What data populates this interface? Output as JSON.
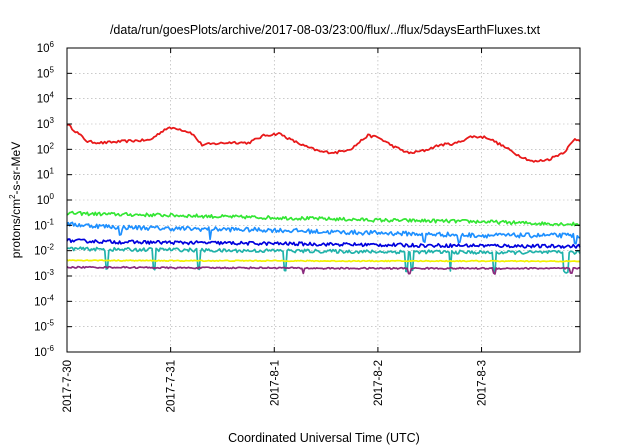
{
  "chart_data": {
    "type": "line",
    "title": "/data/run/goesPlots/archive/2017-08-03/23:00/flux/../flux/5daysEarthFluxes.txt",
    "xlabel": "Coordinated Universal Time (UTC)",
    "ylabel": "protons/cm^2-s-sr-MeV",
    "ylabel_parts": {
      "pre": "protons/cm",
      "sup": "2",
      "post": "-s-sr-MeV"
    },
    "yscale": "log",
    "ylim": [
      1e-06,
      1000000.0
    ],
    "y_ticks": [
      {
        "exp": -6,
        "label": "10",
        "sup": "-6"
      },
      {
        "exp": -5,
        "label": "10",
        "sup": "-5"
      },
      {
        "exp": -4,
        "label": "10",
        "sup": "-4"
      },
      {
        "exp": -3,
        "label": "10",
        "sup": "-3"
      },
      {
        "exp": -2,
        "label": "10",
        "sup": "-2"
      },
      {
        "exp": -1,
        "label": "10",
        "sup": "-1"
      },
      {
        "exp": 0,
        "label": "10",
        "sup": "0"
      },
      {
        "exp": 1,
        "label": "10",
        "sup": "1"
      },
      {
        "exp": 2,
        "label": "10",
        "sup": "2"
      },
      {
        "exp": 3,
        "label": "10",
        "sup": "3"
      },
      {
        "exp": 4,
        "label": "10",
        "sup": "4"
      },
      {
        "exp": 5,
        "label": "10",
        "sup": "5"
      },
      {
        "exp": 6,
        "label": "10",
        "sup": "6"
      }
    ],
    "x_range_days": [
      0,
      4.95
    ],
    "x_ticks": [
      {
        "day": 0,
        "label": "2017-7-30"
      },
      {
        "day": 1,
        "label": "2017-7-31"
      },
      {
        "day": 2,
        "label": "2017-8-1"
      },
      {
        "day": 3,
        "label": "2017-8-2"
      },
      {
        "day": 4,
        "label": "2017-8-3"
      }
    ],
    "grid": true,
    "series": [
      {
        "color": "#e8191a",
        "t": [
          0,
          0.1,
          0.2,
          0.35,
          0.5,
          0.65,
          0.8,
          0.95,
          1.05,
          1.2,
          1.3,
          1.45,
          1.6,
          1.75,
          1.9,
          2.05,
          2.15,
          2.3,
          2.45,
          2.6,
          2.75,
          2.9,
          3.0,
          3.15,
          3.3,
          3.45,
          3.6,
          3.75,
          3.9,
          4.05,
          4.2,
          4.35,
          4.5,
          4.65,
          4.8,
          4.9,
          4.95
        ],
        "y": [
          1000,
          450,
          200,
          180,
          200,
          220,
          230,
          650,
          700,
          450,
          150,
          170,
          190,
          180,
          350,
          420,
          250,
          130,
          80,
          75,
          110,
          350,
          300,
          130,
          70,
          90,
          150,
          170,
          320,
          300,
          140,
          60,
          32,
          40,
          80,
          250,
          230
        ]
      },
      {
        "color": "#33e633",
        "t": [
          0,
          0.5,
          1.0,
          1.5,
          2.0,
          2.5,
          3.0,
          3.5,
          4.0,
          4.5,
          4.95
        ],
        "y": [
          0.3,
          0.27,
          0.25,
          0.22,
          0.2,
          0.18,
          0.16,
          0.15,
          0.14,
          0.12,
          0.11
        ]
      },
      {
        "color": "#1e90ff",
        "t": [
          0,
          0.5,
          1.0,
          1.5,
          2.0,
          2.5,
          3.0,
          3.5,
          4.0,
          4.5,
          4.95
        ],
        "y": [
          0.11,
          0.085,
          0.075,
          0.07,
          0.065,
          0.055,
          0.05,
          0.045,
          0.04,
          0.04,
          0.04
        ]
      },
      {
        "color": "#0000dd",
        "t": [
          0,
          0.5,
          1.0,
          1.5,
          2.0,
          2.5,
          3.0,
          3.5,
          4.0,
          4.5,
          4.95
        ],
        "y": [
          0.025,
          0.022,
          0.021,
          0.02,
          0.019,
          0.018,
          0.017,
          0.016,
          0.016,
          0.015,
          0.015
        ]
      },
      {
        "color": "#20b2aa",
        "t": [
          0,
          0.5,
          1.0,
          1.5,
          2.0,
          2.5,
          3.0,
          3.5,
          4.0,
          4.5,
          4.95
        ],
        "y": [
          0.012,
          0.011,
          0.011,
          0.01,
          0.01,
          0.0095,
          0.009,
          0.009,
          0.0085,
          0.0085,
          0.0085
        ]
      },
      {
        "color": "#f2f200",
        "t": [
          0,
          0.5,
          1.0,
          1.5,
          2.0,
          2.5,
          3.0,
          3.5,
          4.0,
          4.5,
          4.95
        ],
        "y": [
          0.0042,
          0.0041,
          0.004,
          0.004,
          0.004,
          0.0039,
          0.0039,
          0.0039,
          0.0039,
          0.0038,
          0.0038
        ]
      },
      {
        "color": "#8b2b7e",
        "t": [
          0,
          0.5,
          1.0,
          1.5,
          2.0,
          2.5,
          3.0,
          3.5,
          4.0,
          4.5,
          4.95
        ],
        "y": [
          0.0022,
          0.0022,
          0.0021,
          0.0021,
          0.0021,
          0.002,
          0.002,
          0.002,
          0.002,
          0.002,
          0.002
        ]
      }
    ]
  }
}
